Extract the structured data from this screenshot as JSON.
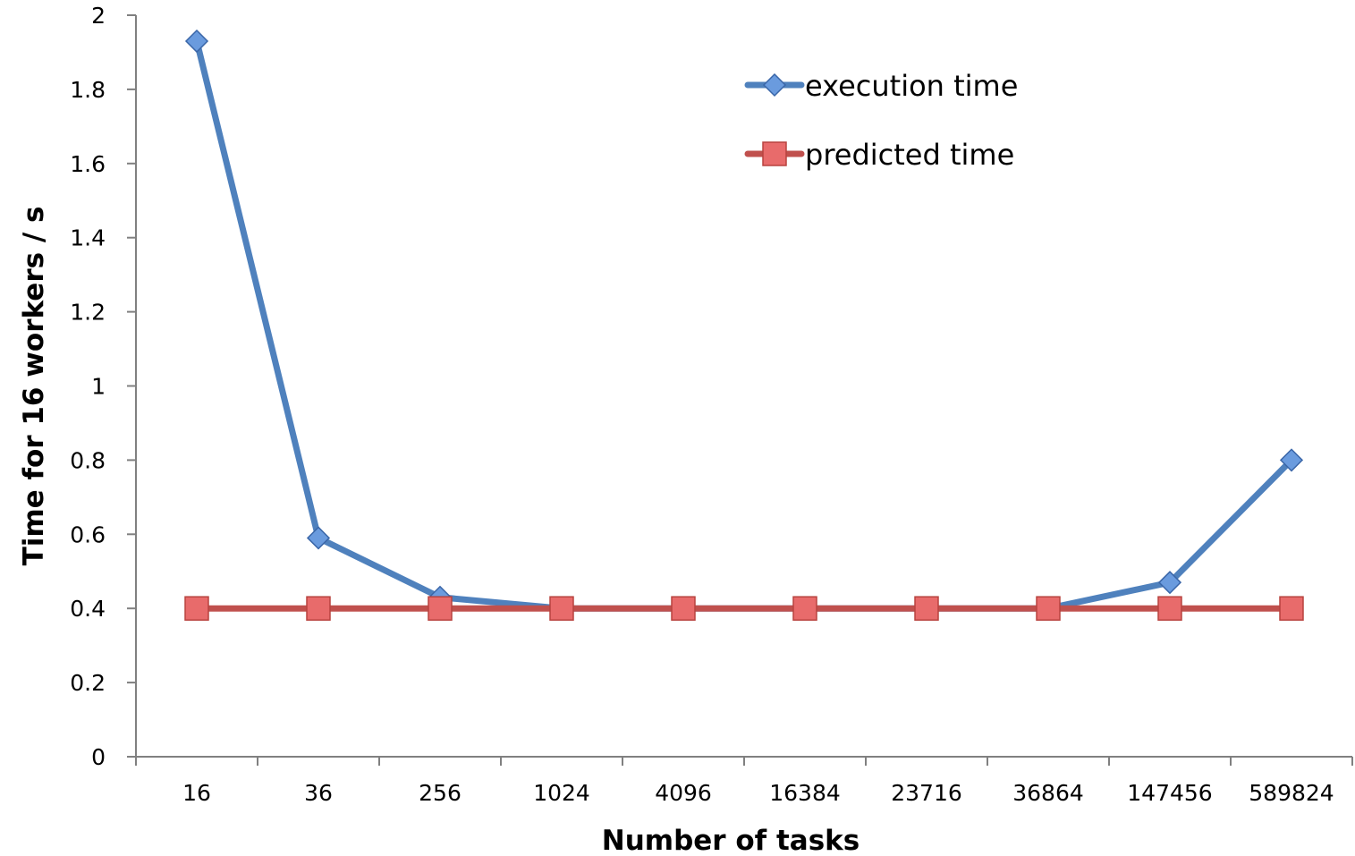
{
  "chart_data": {
    "type": "line",
    "title": "",
    "xlabel": "Number of tasks",
    "ylabel": "Time for 16 workers / s",
    "categories": [
      "16",
      "36",
      "256",
      "1024",
      "4096",
      "16384",
      "23716",
      "36864",
      "147456",
      "589824"
    ],
    "ylim": [
      0,
      2
    ],
    "yticks": [
      "0",
      "0.2",
      "0.4",
      "0.6",
      "0.8",
      "1",
      "1.2",
      "1.4",
      "1.6",
      "1.8",
      "2"
    ],
    "grid": false,
    "legend_position": "top-right",
    "series": [
      {
        "name": "execution time",
        "marker": "diamond",
        "color": "#4F81BD",
        "marker_color": "#6A9BDE",
        "values": [
          1.93,
          0.59,
          0.43,
          0.4,
          0.4,
          0.4,
          0.4,
          0.4,
          0.47,
          0.8
        ]
      },
      {
        "name": "predicted time",
        "marker": "square",
        "color": "#C0504D",
        "marker_color": "#E86B6B",
        "values": [
          0.4,
          0.4,
          0.4,
          0.4,
          0.4,
          0.4,
          0.4,
          0.4,
          0.4,
          0.4
        ]
      }
    ]
  }
}
